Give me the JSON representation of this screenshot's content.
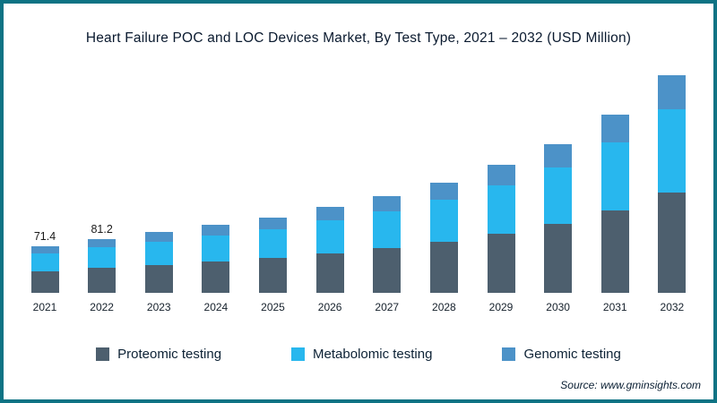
{
  "title": "Heart Failure POC and LOC Devices Market, By Test Type, 2021 – 2032 (USD Million)",
  "source": "Source: www.gminsights.com",
  "colors": {
    "frame_border": "#0e7384",
    "proteomic": "#4d5f6e",
    "metabolomic": "#28b7ee",
    "genomic": "#4c92c8"
  },
  "legend": [
    {
      "label": "Proteomic testing",
      "color": "#4d5f6e"
    },
    {
      "label": "Metabolomic testing",
      "color": "#28b7ee"
    },
    {
      "label": "Genomic testing",
      "color": "#4c92c8"
    }
  ],
  "chart_data": {
    "type": "bar",
    "stacked": true,
    "title": "Heart Failure POC and LOC Devices Market, By Test Type, 2021 – 2032 (USD Million)",
    "xlabel": "",
    "ylabel": "USD Million",
    "ylim": [
      0,
      340
    ],
    "grid": false,
    "legend_position": "bottom",
    "categories": [
      "2021",
      "2022",
      "2023",
      "2024",
      "2025",
      "2026",
      "2027",
      "2028",
      "2029",
      "2030",
      "2031",
      "2032"
    ],
    "series": [
      {
        "name": "Proteomic testing",
        "color": "#4d5f6e",
        "values": [
          33.0,
          37.5,
          42.7,
          47.6,
          52.9,
          60.5,
          67.4,
          77.1,
          89.1,
          104.8,
          125.2,
          152.9
        ]
      },
      {
        "name": "Metabolomic testing",
        "color": "#28b7ee",
        "values": [
          27.0,
          30.8,
          35.1,
          39.1,
          43.5,
          49.8,
          55.5,
          63.5,
          73.3,
          86.3,
          103.0,
          125.8
        ]
      },
      {
        "name": "Genomic testing",
        "color": "#4c92c8",
        "values": [
          11.4,
          12.9,
          14.7,
          16.3,
          18.1,
          20.7,
          23.1,
          26.4,
          30.6,
          35.9,
          42.8,
          52.3
        ]
      }
    ],
    "totals": [
      71.4,
      81.2,
      92.5,
      103.0,
      114.5,
      131.0,
      146.0,
      167.0,
      193.0,
      227.0,
      271.0,
      331.0
    ],
    "data_labels": [
      "71.4",
      "81.2",
      "",
      "",
      "",
      "",
      "",
      "",
      "",
      "",
      "",
      ""
    ]
  }
}
